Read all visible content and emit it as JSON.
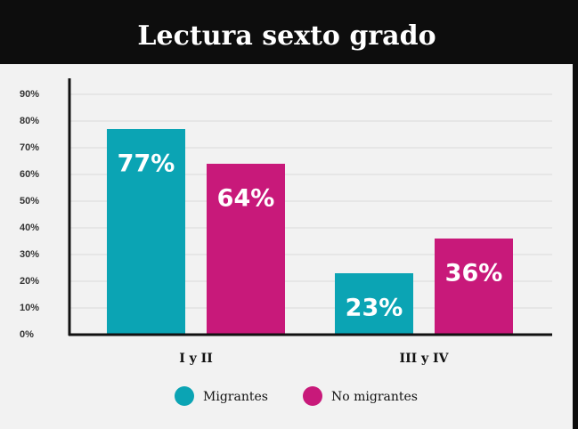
{
  "chart_data": {
    "type": "bar",
    "title": "Lectura sexto grado",
    "categories": [
      "I y II",
      "III y IV"
    ],
    "series": [
      {
        "name": "Migrantes",
        "color": "#0ba4b4",
        "values": [
          77,
          23
        ],
        "value_labels": [
          "77%",
          "23%"
        ]
      },
      {
        "name": "No migrantes",
        "color": "#c8197a",
        "values": [
          64,
          36
        ],
        "value_labels": [
          "64%",
          "36%"
        ]
      }
    ],
    "ylim": [
      0,
      90
    ],
    "yticks": [
      {
        "value": 0,
        "label": "0%"
      },
      {
        "value": 10,
        "label": "10%"
      },
      {
        "value": 20,
        "label": "20%"
      },
      {
        "value": 30,
        "label": "30%"
      },
      {
        "value": 40,
        "label": "40%"
      },
      {
        "value": 50,
        "label": "50%"
      },
      {
        "value": 60,
        "label": "60%"
      },
      {
        "value": 70,
        "label": "70%"
      },
      {
        "value": 80,
        "label": "80%"
      },
      {
        "value": 90,
        "label": "90%"
      }
    ],
    "grid": true
  }
}
